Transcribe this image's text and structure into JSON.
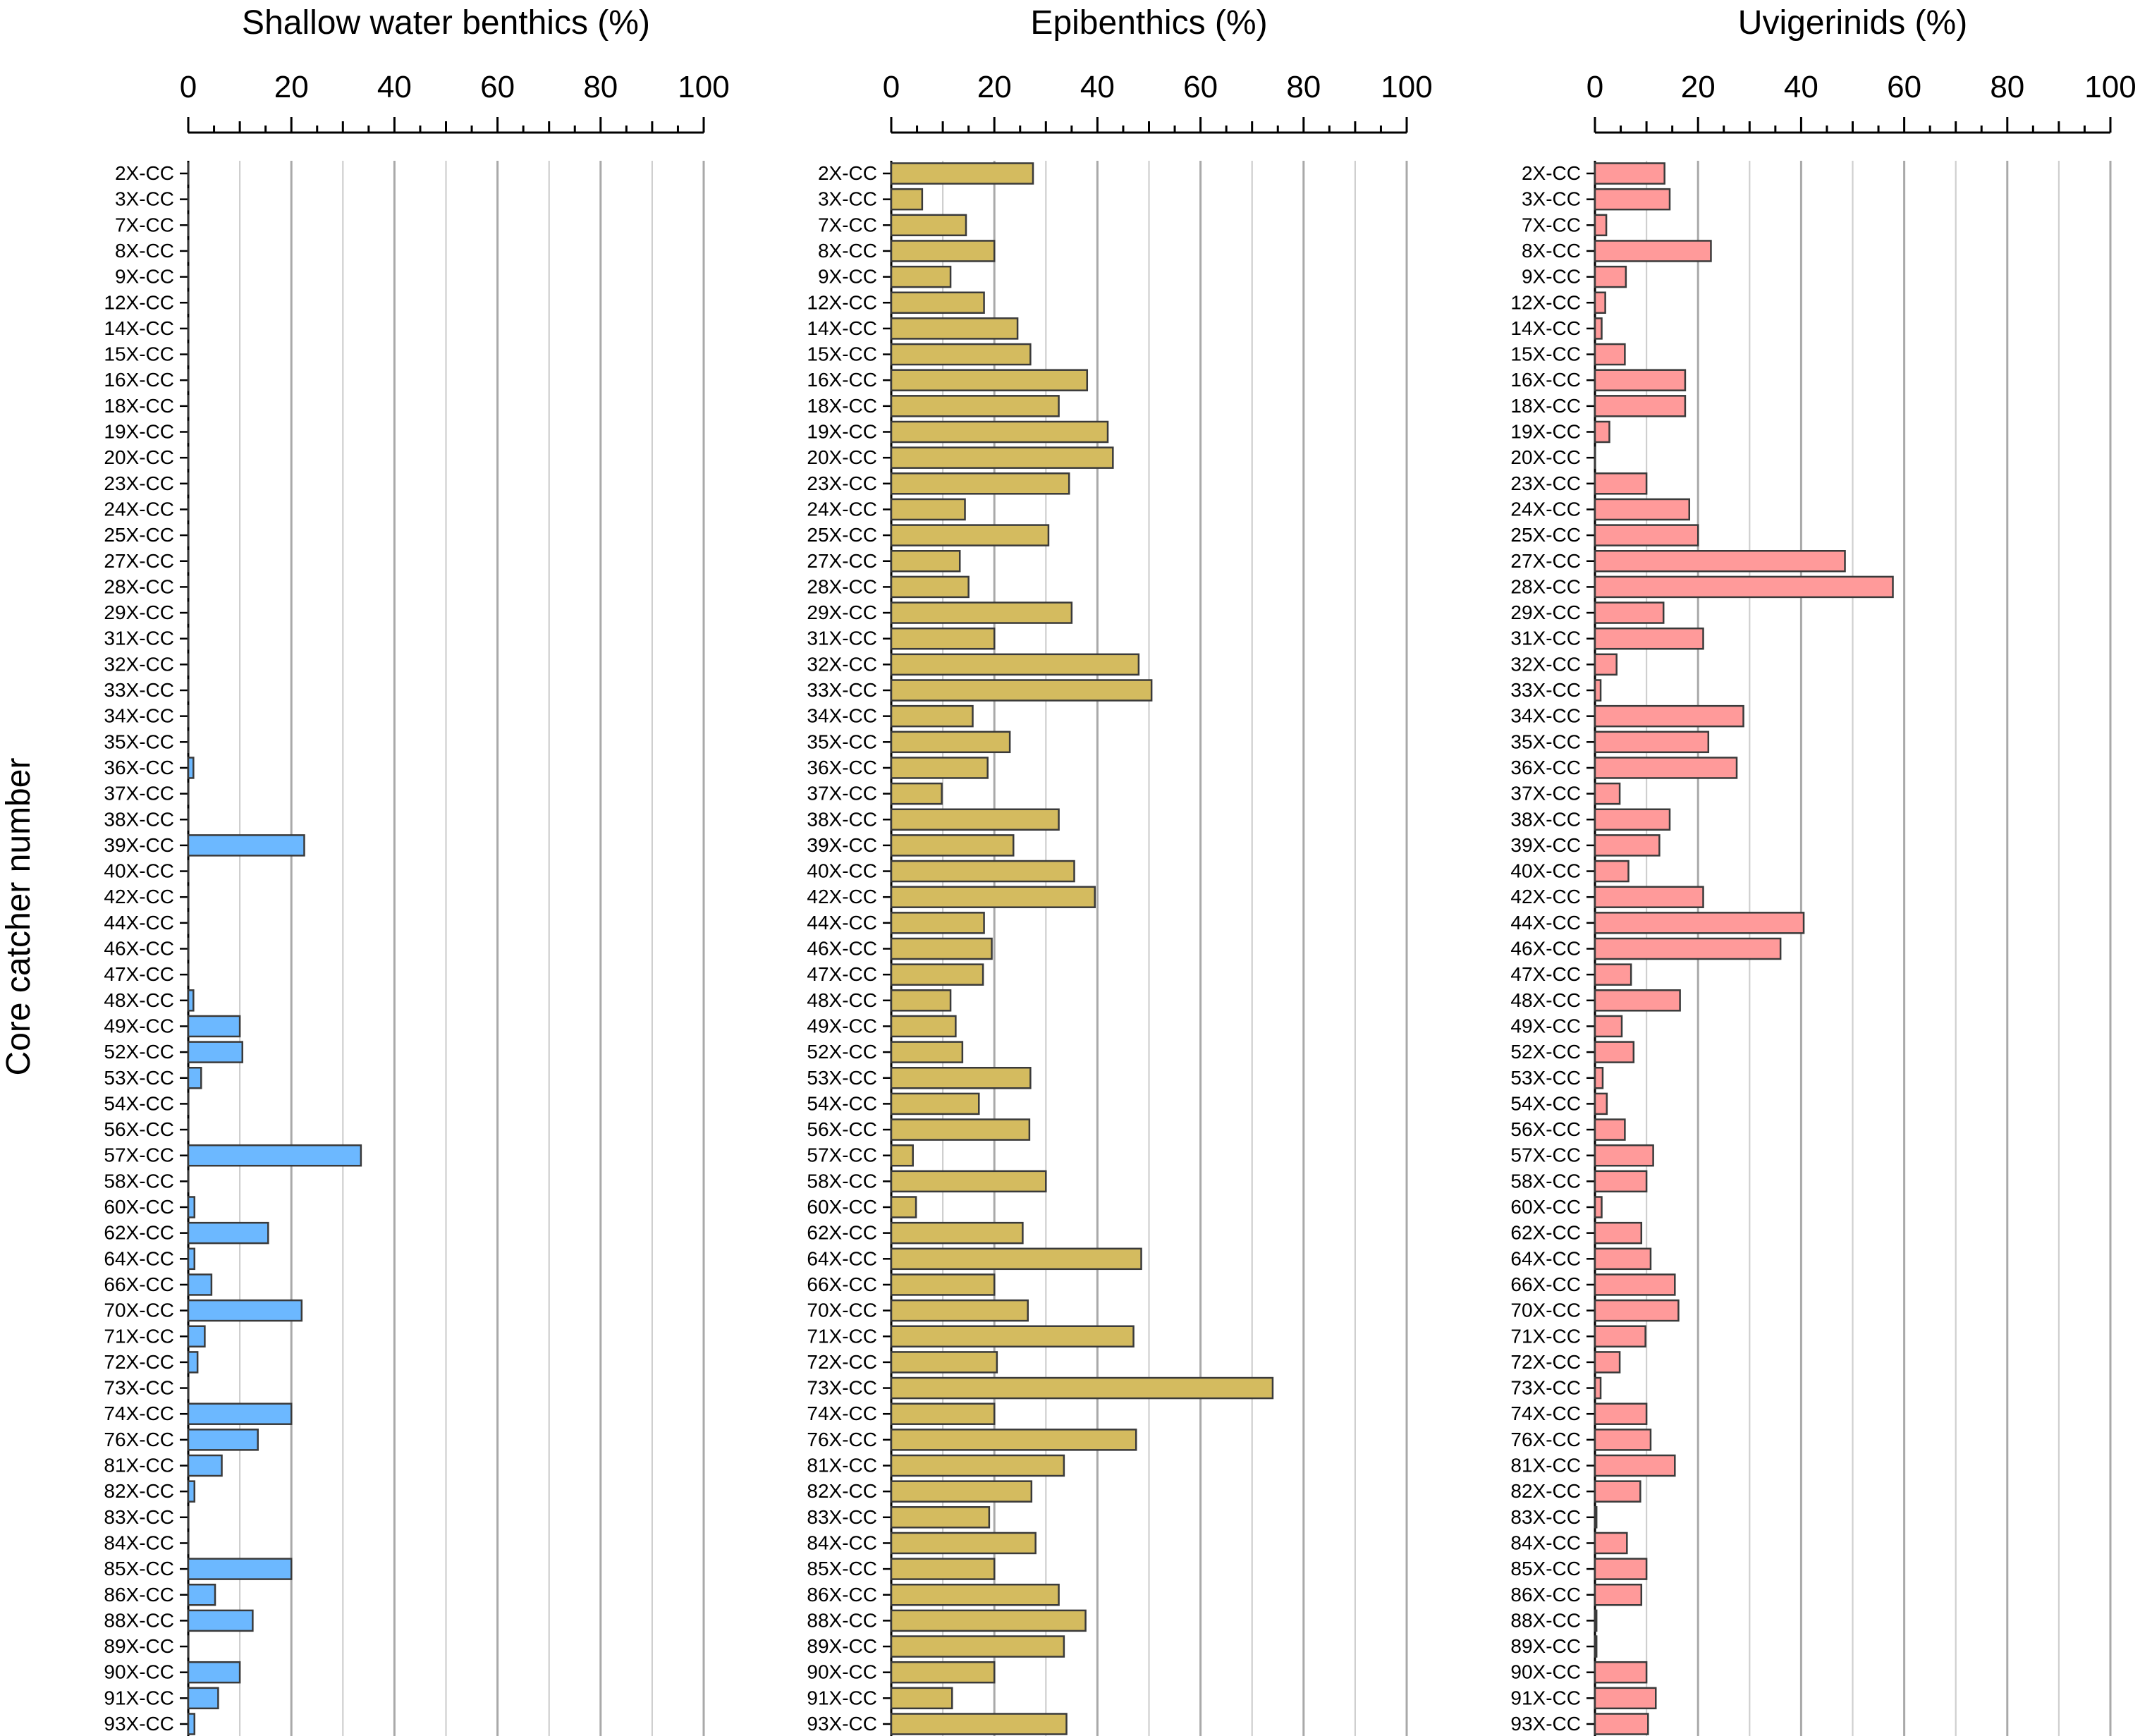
{
  "y_axis_label": "Core catcher number",
  "colors": {
    "shallow": "#6cb8ff",
    "epibenthics": "#d4bb5f",
    "uvigerinids": "#ff9a9a",
    "bar_stroke": "#3a3a3a",
    "grid": "#a9a9a9",
    "axis": "#000000"
  },
  "chart_data": [
    {
      "type": "bar",
      "orientation": "horizontal",
      "title": "Shallow water benthics (%)",
      "xlim": [
        0,
        100
      ],
      "x_ticks": [
        0,
        20,
        40,
        60,
        80,
        100
      ],
      "grid": true,
      "categories": [
        "2X-CC",
        "3X-CC",
        "7X-CC",
        "8X-CC",
        "9X-CC",
        "12X-CC",
        "14X-CC",
        "15X-CC",
        "16X-CC",
        "18X-CC",
        "19X-CC",
        "20X-CC",
        "23X-CC",
        "24X-CC",
        "25X-CC",
        "27X-CC",
        "28X-CC",
        "29X-CC",
        "31X-CC",
        "32X-CC",
        "33X-CC",
        "34X-CC",
        "35X-CC",
        "36X-CC",
        "37X-CC",
        "38X-CC",
        "39X-CC",
        "40X-CC",
        "42X-CC",
        "44X-CC",
        "46X-CC",
        "47X-CC",
        "48X-CC",
        "49X-CC",
        "52X-CC",
        "53X-CC",
        "54X-CC",
        "56X-CC",
        "57X-CC",
        "58X-CC",
        "60X-CC",
        "62X-CC",
        "64X-CC",
        "66X-CC",
        "70X-CC",
        "71X-CC",
        "72X-CC",
        "73X-CC",
        "74X-CC",
        "76X-CC",
        "81X-CC",
        "82X-CC",
        "83X-CC",
        "84X-CC",
        "85X-CC",
        "86X-CC",
        "88X-CC",
        "89X-CC",
        "90X-CC",
        "91X-CC",
        "93X-CC"
      ],
      "values": [
        0,
        0,
        0,
        0,
        0,
        0,
        0,
        0,
        0,
        0,
        0,
        0,
        0,
        0,
        0,
        0,
        0,
        0,
        0,
        0,
        0,
        0,
        0,
        1,
        0,
        0,
        22.5,
        0,
        0,
        0,
        0,
        0,
        1,
        10,
        10.5,
        2.5,
        0,
        0,
        33.5,
        0,
        1.2,
        15.5,
        1.2,
        4.5,
        22,
        3.2,
        1.8,
        0,
        20,
        13.5,
        6.5,
        1.2,
        0,
        0,
        20,
        5.2,
        12.5,
        0,
        10,
        5.8,
        1.2
      ],
      "color_key": "shallow"
    },
    {
      "type": "bar",
      "orientation": "horizontal",
      "title": "Epibenthics (%)",
      "xlim": [
        0,
        100
      ],
      "x_ticks": [
        0,
        20,
        40,
        60,
        80,
        100
      ],
      "grid": true,
      "categories": [
        "2X-CC",
        "3X-CC",
        "7X-CC",
        "8X-CC",
        "9X-CC",
        "12X-CC",
        "14X-CC",
        "15X-CC",
        "16X-CC",
        "18X-CC",
        "19X-CC",
        "20X-CC",
        "23X-CC",
        "24X-CC",
        "25X-CC",
        "27X-CC",
        "28X-CC",
        "29X-CC",
        "31X-CC",
        "32X-CC",
        "33X-CC",
        "34X-CC",
        "35X-CC",
        "36X-CC",
        "37X-CC",
        "38X-CC",
        "39X-CC",
        "40X-CC",
        "42X-CC",
        "44X-CC",
        "46X-CC",
        "47X-CC",
        "48X-CC",
        "49X-CC",
        "52X-CC",
        "53X-CC",
        "54X-CC",
        "56X-CC",
        "57X-CC",
        "58X-CC",
        "60X-CC",
        "62X-CC",
        "64X-CC",
        "66X-CC",
        "70X-CC",
        "71X-CC",
        "72X-CC",
        "73X-CC",
        "74X-CC",
        "76X-CC",
        "81X-CC",
        "82X-CC",
        "83X-CC",
        "84X-CC",
        "85X-CC",
        "86X-CC",
        "88X-CC",
        "89X-CC",
        "90X-CC",
        "91X-CC",
        "93X-CC"
      ],
      "values": [
        27.5,
        6,
        14.5,
        20,
        11.5,
        18,
        24.5,
        27,
        38,
        32.5,
        42,
        43,
        34.5,
        14.3,
        30.5,
        13.3,
        15,
        35,
        20,
        48,
        50.5,
        15.8,
        23,
        18.7,
        9.8,
        32.5,
        23.7,
        35.5,
        39.5,
        18,
        19.5,
        17.8,
        11.5,
        12.5,
        13.8,
        27,
        17,
        26.8,
        4.2,
        30,
        4.8,
        25.5,
        48.5,
        20,
        26.5,
        47,
        20.5,
        74,
        20,
        47.5,
        33.5,
        27.2,
        19,
        28,
        20,
        32.5,
        37.7,
        33.5,
        20,
        11.8,
        34
      ],
      "color_key": "epibenthics"
    },
    {
      "type": "bar",
      "orientation": "horizontal",
      "title": "Uvigerinids (%)",
      "xlim": [
        0,
        100
      ],
      "x_ticks": [
        0,
        20,
        40,
        60,
        80,
        100
      ],
      "grid": true,
      "categories": [
        "2X-CC",
        "3X-CC",
        "7X-CC",
        "8X-CC",
        "9X-CC",
        "12X-CC",
        "14X-CC",
        "15X-CC",
        "16X-CC",
        "18X-CC",
        "19X-CC",
        "20X-CC",
        "23X-CC",
        "24X-CC",
        "25X-CC",
        "27X-CC",
        "28X-CC",
        "29X-CC",
        "31X-CC",
        "32X-CC",
        "33X-CC",
        "34X-CC",
        "35X-CC",
        "36X-CC",
        "37X-CC",
        "38X-CC",
        "39X-CC",
        "40X-CC",
        "42X-CC",
        "44X-CC",
        "46X-CC",
        "47X-CC",
        "48X-CC",
        "49X-CC",
        "52X-CC",
        "53X-CC",
        "54X-CC",
        "56X-CC",
        "57X-CC",
        "58X-CC",
        "60X-CC",
        "62X-CC",
        "64X-CC",
        "66X-CC",
        "70X-CC",
        "71X-CC",
        "72X-CC",
        "73X-CC",
        "74X-CC",
        "76X-CC",
        "81X-CC",
        "82X-CC",
        "83X-CC",
        "84X-CC",
        "85X-CC",
        "86X-CC",
        "88X-CC",
        "89X-CC",
        "90X-CC",
        "91X-CC",
        "93X-CC"
      ],
      "values": [
        13.5,
        14.5,
        2.2,
        22.5,
        6,
        2,
        1.3,
        5.8,
        17.5,
        17.5,
        2.8,
        0,
        10,
        18.3,
        20,
        48.5,
        57.8,
        13.3,
        21,
        4.2,
        1.1,
        28.8,
        22,
        27.5,
        4.8,
        14.5,
        12.5,
        6.5,
        21,
        40.5,
        36,
        7,
        16.5,
        5.2,
        7.5,
        1.5,
        2.3,
        5.8,
        11.3,
        10,
        1.3,
        9,
        10.8,
        15.5,
        16.2,
        9.8,
        4.8,
        1.1,
        10,
        10.8,
        15.5,
        8.8,
        0.3,
        6.2,
        10,
        9,
        0.3,
        0.3,
        10,
        11.8,
        10.3
      ],
      "color_key": "uvigerinids"
    }
  ]
}
